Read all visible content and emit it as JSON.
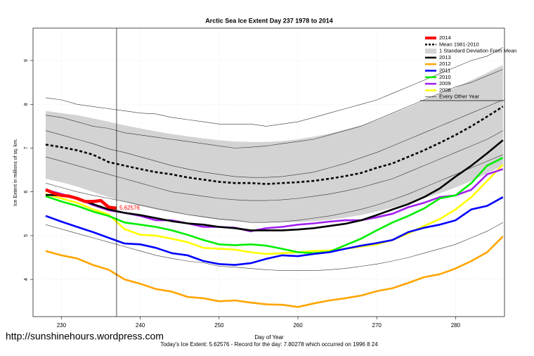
{
  "chart_data": {
    "type": "line",
    "title": "Arctic Sea Ice Extent Day 237 1978 to 2014",
    "xlabel": "Day of Year",
    "ylabel": "Ice Extent in millions of sq. km.",
    "footnote": "Today's Ice Extent: 5.62576  - Record for the day: 7.80278 which occurred on 1996 8 24",
    "watermark": "http://sunshinehours.wordpress.com",
    "xlim": [
      226.4,
      286.2
    ],
    "ylim": [
      3.15,
      9.74
    ],
    "xticks": [
      230,
      240,
      250,
      260,
      270,
      280
    ],
    "yticks": [
      4,
      5,
      6,
      7,
      8,
      9
    ],
    "grid": true,
    "vline": 237,
    "legend": "top-right",
    "x": [
      228,
      230,
      232,
      234,
      236,
      238,
      240,
      242,
      244,
      246,
      248,
      250,
      252,
      254,
      256,
      258,
      260,
      262,
      264,
      266,
      268,
      270,
      272,
      274,
      276,
      278,
      280,
      282,
      284,
      286
    ],
    "series": [
      {
        "name": "2014",
        "color": "#ff0000",
        "x": [
          228,
          229,
          230,
          231,
          232,
          233,
          234,
          235,
          236,
          237
        ],
        "values": [
          6.05,
          5.97,
          5.92,
          5.9,
          5.85,
          5.78,
          5.78,
          5.8,
          5.65,
          5.62576
        ]
      },
      {
        "name": "Mean 1981-2010",
        "color": "#000000",
        "dashed": true,
        "values": [
          7.08,
          7.02,
          6.95,
          6.85,
          6.68,
          6.6,
          6.52,
          6.45,
          6.4,
          6.33,
          6.28,
          6.23,
          6.2,
          6.2,
          6.18,
          6.2,
          6.22,
          6.25,
          6.3,
          6.36,
          6.43,
          6.55,
          6.65,
          6.8,
          6.95,
          7.12,
          7.3,
          7.5,
          7.72,
          7.95
        ]
      },
      {
        "name": "1 Standard Deviation From Mean",
        "color": "#d3d3d3",
        "upper": [
          7.85,
          7.8,
          7.75,
          7.68,
          7.6,
          7.52,
          7.45,
          7.38,
          7.32,
          7.27,
          7.22,
          7.18,
          7.15,
          7.14,
          7.14,
          7.16,
          7.2,
          7.26,
          7.33,
          7.42,
          7.52,
          7.64,
          7.78,
          7.93,
          8.08,
          8.23,
          8.38,
          8.55,
          8.72,
          8.9
        ],
        "lower": [
          6.3,
          6.22,
          6.12,
          6.0,
          5.88,
          5.77,
          5.68,
          5.6,
          5.53,
          5.47,
          5.41,
          5.36,
          5.33,
          5.31,
          5.3,
          5.3,
          5.31,
          5.33,
          5.36,
          5.41,
          5.47,
          5.55,
          5.64,
          5.74,
          5.85,
          5.97,
          6.1,
          6.25,
          6.42,
          6.6
        ]
      },
      {
        "name": "2013",
        "color": "#000000",
        "values": [
          5.93,
          5.92,
          5.85,
          5.72,
          5.6,
          5.52,
          5.47,
          5.4,
          5.33,
          5.28,
          5.25,
          5.2,
          5.17,
          5.12,
          5.12,
          5.12,
          5.14,
          5.17,
          5.22,
          5.27,
          5.35,
          5.47,
          5.6,
          5.72,
          5.88,
          6.08,
          6.35,
          6.6,
          6.88,
          7.18
        ]
      },
      {
        "name": "2012",
        "color": "#ffa500",
        "values": [
          4.65,
          4.55,
          4.48,
          4.33,
          4.22,
          4.0,
          3.9,
          3.78,
          3.72,
          3.6,
          3.57,
          3.5,
          3.52,
          3.47,
          3.43,
          3.42,
          3.37,
          3.45,
          3.52,
          3.57,
          3.63,
          3.73,
          3.8,
          3.92,
          4.05,
          4.12,
          4.25,
          4.42,
          4.62,
          4.98
        ]
      },
      {
        "name": "2011",
        "color": "#0000ff",
        "values": [
          5.45,
          5.32,
          5.2,
          5.08,
          4.95,
          4.82,
          4.8,
          4.72,
          4.6,
          4.55,
          4.42,
          4.35,
          4.33,
          4.37,
          4.47,
          4.55,
          4.53,
          4.58,
          4.62,
          4.7,
          4.77,
          4.83,
          4.9,
          5.08,
          5.18,
          5.25,
          5.35,
          5.6,
          5.68,
          5.88
        ]
      },
      {
        "name": "2010",
        "color": "#00ee00",
        "values": [
          5.9,
          5.78,
          5.68,
          5.55,
          5.45,
          5.3,
          5.25,
          5.2,
          5.12,
          5.02,
          4.9,
          4.8,
          4.78,
          4.8,
          4.77,
          4.7,
          4.62,
          4.6,
          4.63,
          4.78,
          4.93,
          5.12,
          5.3,
          5.45,
          5.62,
          5.85,
          5.92,
          6.2,
          6.6,
          6.78
        ]
      },
      {
        "name": "2009",
        "color": "#a020f0",
        "values": [
          6.05,
          5.95,
          5.85,
          5.7,
          5.58,
          5.52,
          5.45,
          5.35,
          5.35,
          5.28,
          5.2,
          5.2,
          5.18,
          5.1,
          5.17,
          5.2,
          5.25,
          5.28,
          5.32,
          5.35,
          5.35,
          5.42,
          5.5,
          5.65,
          5.75,
          5.88,
          5.92,
          6.05,
          6.4,
          6.52
        ]
      },
      {
        "name": "2008",
        "color": "#ffff00",
        "values": [
          5.95,
          5.85,
          5.75,
          5.6,
          5.48,
          5.15,
          5.02,
          5.0,
          4.93,
          4.85,
          4.72,
          4.7,
          4.68,
          4.62,
          4.58,
          4.6,
          4.62,
          4.65,
          4.66,
          4.7,
          4.75,
          4.8,
          4.9,
          5.05,
          5.22,
          5.38,
          5.6,
          5.88,
          6.25,
          6.62
        ]
      },
      {
        "name": "Every Other Year",
        "color": "#333333",
        "lines": [
          [
            8.15,
            8.1,
            8.0,
            7.95,
            7.9,
            7.85,
            7.8,
            7.78,
            7.7,
            7.65,
            7.6,
            7.55,
            7.55,
            7.55,
            7.5,
            7.55,
            7.6,
            7.7,
            7.8,
            7.9,
            8.0,
            8.1,
            8.25,
            8.4,
            8.55,
            8.7,
            8.85,
            9.0,
            9.1,
            9.3
          ],
          [
            7.75,
            7.7,
            7.6,
            7.5,
            7.45,
            7.35,
            7.3,
            7.25,
            7.2,
            7.15,
            7.1,
            7.05,
            7.0,
            7.02,
            7.05,
            7.1,
            7.15,
            7.2,
            7.3,
            7.4,
            7.5,
            7.65,
            7.8,
            7.95,
            8.1,
            8.25,
            8.4,
            8.5,
            8.65,
            8.8
          ],
          [
            7.4,
            7.3,
            7.2,
            7.1,
            6.98,
            6.9,
            6.8,
            6.7,
            6.6,
            6.52,
            6.45,
            6.4,
            6.35,
            6.33,
            6.33,
            6.35,
            6.4,
            6.45,
            6.55,
            6.65,
            6.78,
            6.9,
            7.05,
            7.2,
            7.35,
            7.5,
            7.65,
            7.8,
            7.95,
            8.1
          ],
          [
            6.8,
            6.7,
            6.6,
            6.5,
            6.4,
            6.3,
            6.2,
            6.1,
            6.0,
            5.95,
            5.9,
            5.85,
            5.82,
            5.8,
            5.8,
            5.82,
            5.85,
            5.9,
            5.95,
            6.02,
            6.1,
            6.2,
            6.3,
            6.45,
            6.6,
            6.75,
            6.9,
            7.05,
            7.2,
            7.4
          ],
          [
            6.2,
            6.1,
            6.0,
            5.92,
            5.85,
            5.78,
            5.7,
            5.62,
            5.55,
            5.48,
            5.43,
            5.38,
            5.35,
            5.3,
            5.3,
            5.32,
            5.35,
            5.4,
            5.45,
            5.52,
            5.6,
            5.7,
            5.82,
            5.95,
            6.1,
            6.25,
            6.4,
            6.55,
            6.7,
            6.85
          ],
          [
            5.25,
            5.15,
            5.05,
            4.95,
            4.85,
            4.75,
            4.65,
            4.55,
            4.48,
            4.42,
            4.38,
            4.3,
            4.28,
            4.25,
            4.22,
            4.2,
            4.2,
            4.2,
            4.22,
            4.25,
            4.3,
            4.35,
            4.42,
            4.5,
            4.6,
            4.7,
            4.8,
            4.95,
            5.1,
            5.3
          ]
        ]
      }
    ]
  }
}
